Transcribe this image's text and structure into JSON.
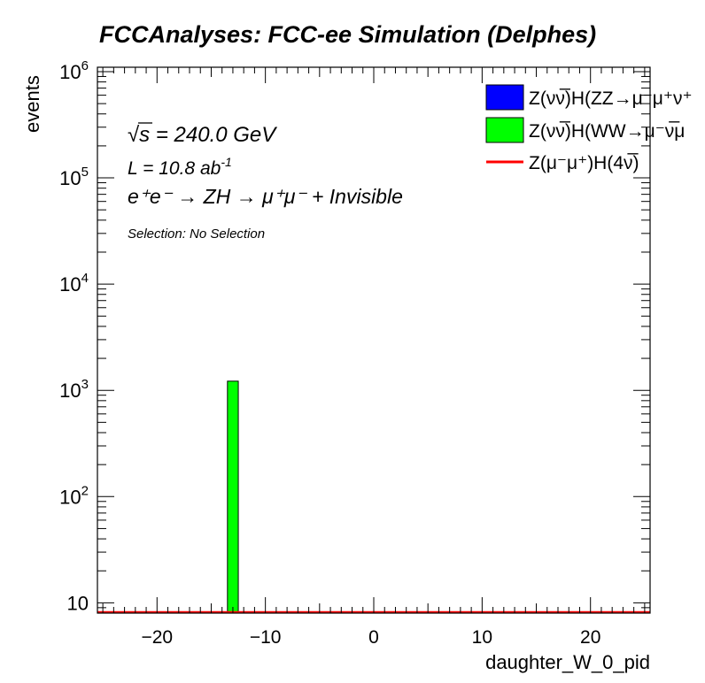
{
  "chart_data": {
    "type": "bar",
    "title": "FCCAnalyses: FCC-ee Simulation (Delphes)",
    "xlabel": "daughter_W_0_pid",
    "ylabel": "events",
    "xlim": [
      -25.5,
      25.5
    ],
    "ylim": [
      8,
      1100000
    ],
    "yscale": "log",
    "x_ticks": [
      -20,
      -10,
      0,
      10,
      20
    ],
    "x_tick_labels": [
      "−20",
      "−10",
      "0",
      "10",
      "20"
    ],
    "y_ticks": [
      10,
      100,
      1000,
      10000,
      100000,
      1000000
    ],
    "y_tick_labels": [
      "10",
      "10",
      "10",
      "10",
      "10",
      "10"
    ],
    "y_tick_exps": [
      "",
      "2",
      "3",
      "4",
      "5",
      "6"
    ],
    "grid": false,
    "legend_position": "top-right",
    "annotations": {
      "sqrt_s_prefix": "√",
      "sqrt_s_var": "s",
      "sqrt_s_rest": " = 240.0 GeV",
      "lumi_text": "L = 10.8 ab",
      "lumi_exp": "-1",
      "process": "e⁺e⁻ → ZH → μ⁺μ⁻ + Invisible",
      "selection": "Selection: No Selection"
    },
    "series": [
      {
        "name": "Z(νν̅)H(ZZ→μ⁻μ⁺ν⁺",
        "color": "#0000ff",
        "style": "fill",
        "bins": []
      },
      {
        "name": "Z(νν̅)H(WW→μ⁻ν̅μ",
        "color": "#00ff00",
        "style": "fill",
        "bins": [
          {
            "x": -13,
            "width": 1,
            "value": 1220
          }
        ]
      },
      {
        "name": "Z(μ⁻μ⁺)H(4ν̅)",
        "color": "#ff0000",
        "style": "line",
        "bins": []
      }
    ]
  }
}
